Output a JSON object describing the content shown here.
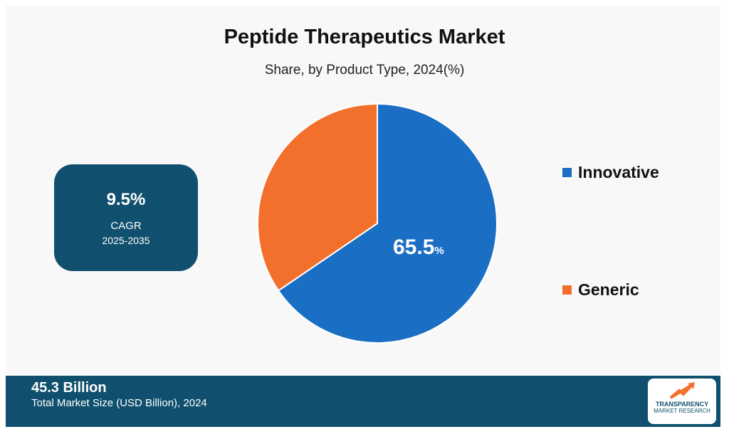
{
  "chart_data": {
    "type": "pie",
    "title": "Peptide Therapeutics Market",
    "subtitle": "Share, by Product Type, 2024(%)",
    "categories": [
      "Innovative",
      "Generic"
    ],
    "values": [
      65.5,
      34.5
    ],
    "colors": [
      "#1a6ec4",
      "#f36f2c"
    ],
    "data_labels": [
      {
        "category": "Innovative",
        "value": "65.5",
        "unit": "%"
      }
    ],
    "legend_placement": "right"
  },
  "cagr": {
    "value": "9.5%",
    "label": "CAGR",
    "period": "2025-2035"
  },
  "footer": {
    "value": "45.3 Billion",
    "label": "Total Market Size (USD Billion), 2024"
  },
  "logo": {
    "line1": "TRANSPARENCY",
    "line2": "MARKET RESEARCH",
    "icon": "upward-arrow-logo-icon"
  },
  "colors": {
    "panel": "#f8f8f8",
    "accent": "#10506e"
  }
}
